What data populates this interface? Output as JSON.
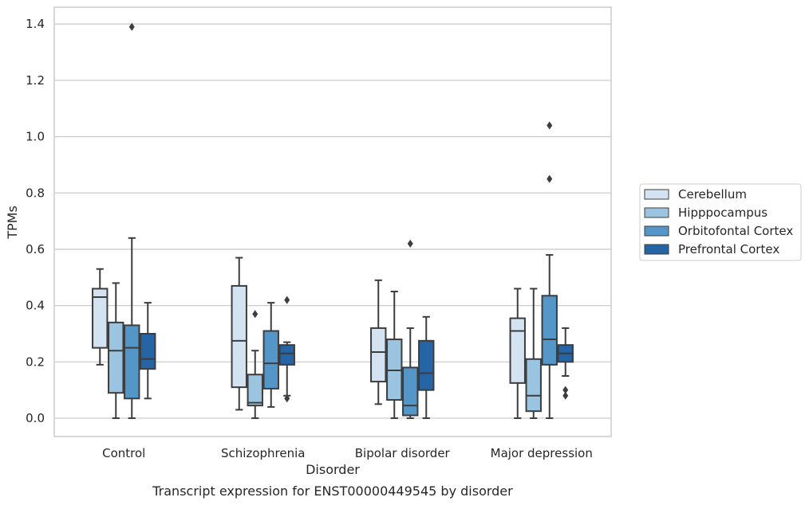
{
  "chart_data": {
    "type": "box",
    "title": "",
    "caption": "Transcript expression for ENST00000449545 by disorder",
    "xlabel": "Disorder",
    "ylabel": "TPMs",
    "ylim": [
      -0.065,
      1.46
    ],
    "yticks": [
      "0.0",
      "0.2",
      "0.4",
      "0.6",
      "0.8",
      "1.0",
      "1.2",
      "1.4"
    ],
    "grid": "horizontal",
    "legend_position": "right",
    "categories": [
      "Control",
      "Schizophrenia",
      "Bipolar disorder",
      "Major depression"
    ],
    "series": [
      {
        "name": "Cerebellum",
        "color": "#d3e3f2",
        "boxes": [
          {
            "whislo": 0.19,
            "q1": 0.25,
            "med": 0.43,
            "q3": 0.46,
            "whishi": 0.53,
            "fliers": []
          },
          {
            "whislo": 0.03,
            "q1": 0.11,
            "med": 0.275,
            "q3": 0.47,
            "whishi": 0.57,
            "fliers": []
          },
          {
            "whislo": 0.05,
            "q1": 0.13,
            "med": 0.235,
            "q3": 0.32,
            "whishi": 0.49,
            "fliers": []
          },
          {
            "whislo": 0.0,
            "q1": 0.125,
            "med": 0.31,
            "q3": 0.355,
            "whishi": 0.46,
            "fliers": []
          }
        ]
      },
      {
        "name": "Hipppocampus",
        "color": "#9ac4df",
        "boxes": [
          {
            "whislo": 0.0,
            "q1": 0.09,
            "med": 0.24,
            "q3": 0.34,
            "whishi": 0.48,
            "fliers": []
          },
          {
            "whislo": 0.0,
            "q1": 0.045,
            "med": 0.055,
            "q3": 0.155,
            "whishi": 0.24,
            "fliers": [
              0.37
            ]
          },
          {
            "whislo": 0.0,
            "q1": 0.065,
            "med": 0.17,
            "q3": 0.28,
            "whishi": 0.45,
            "fliers": []
          },
          {
            "whislo": 0.0,
            "q1": 0.025,
            "med": 0.08,
            "q3": 0.21,
            "whishi": 0.46,
            "fliers": []
          }
        ]
      },
      {
        "name": "Orbitofontal Cortex",
        "color": "#5496c8",
        "boxes": [
          {
            "whislo": 0.0,
            "q1": 0.07,
            "med": 0.25,
            "q3": 0.33,
            "whishi": 0.64,
            "fliers": [
              1.39
            ]
          },
          {
            "whislo": 0.04,
            "q1": 0.105,
            "med": 0.195,
            "q3": 0.31,
            "whishi": 0.41,
            "fliers": []
          },
          {
            "whislo": 0.0,
            "q1": 0.01,
            "med": 0.045,
            "q3": 0.18,
            "whishi": 0.32,
            "fliers": [
              0.62
            ]
          },
          {
            "whislo": 0.0,
            "q1": 0.19,
            "med": 0.28,
            "q3": 0.435,
            "whishi": 0.58,
            "fliers": [
              0.85,
              1.04
            ]
          }
        ]
      },
      {
        "name": "Prefrontal Cortex",
        "color": "#2564a5",
        "boxes": [
          {
            "whislo": 0.07,
            "q1": 0.175,
            "med": 0.21,
            "q3": 0.3,
            "whishi": 0.41,
            "fliers": []
          },
          {
            "whislo": 0.08,
            "q1": 0.19,
            "med": 0.23,
            "q3": 0.26,
            "whishi": 0.27,
            "fliers": [
              0.42,
              0.07
            ]
          },
          {
            "whislo": 0.0,
            "q1": 0.1,
            "med": 0.16,
            "q3": 0.275,
            "whishi": 0.36,
            "fliers": []
          },
          {
            "whislo": 0.15,
            "q1": 0.2,
            "med": 0.23,
            "q3": 0.26,
            "whishi": 0.32,
            "fliers": [
              0.1,
              0.08
            ]
          }
        ]
      }
    ]
  }
}
